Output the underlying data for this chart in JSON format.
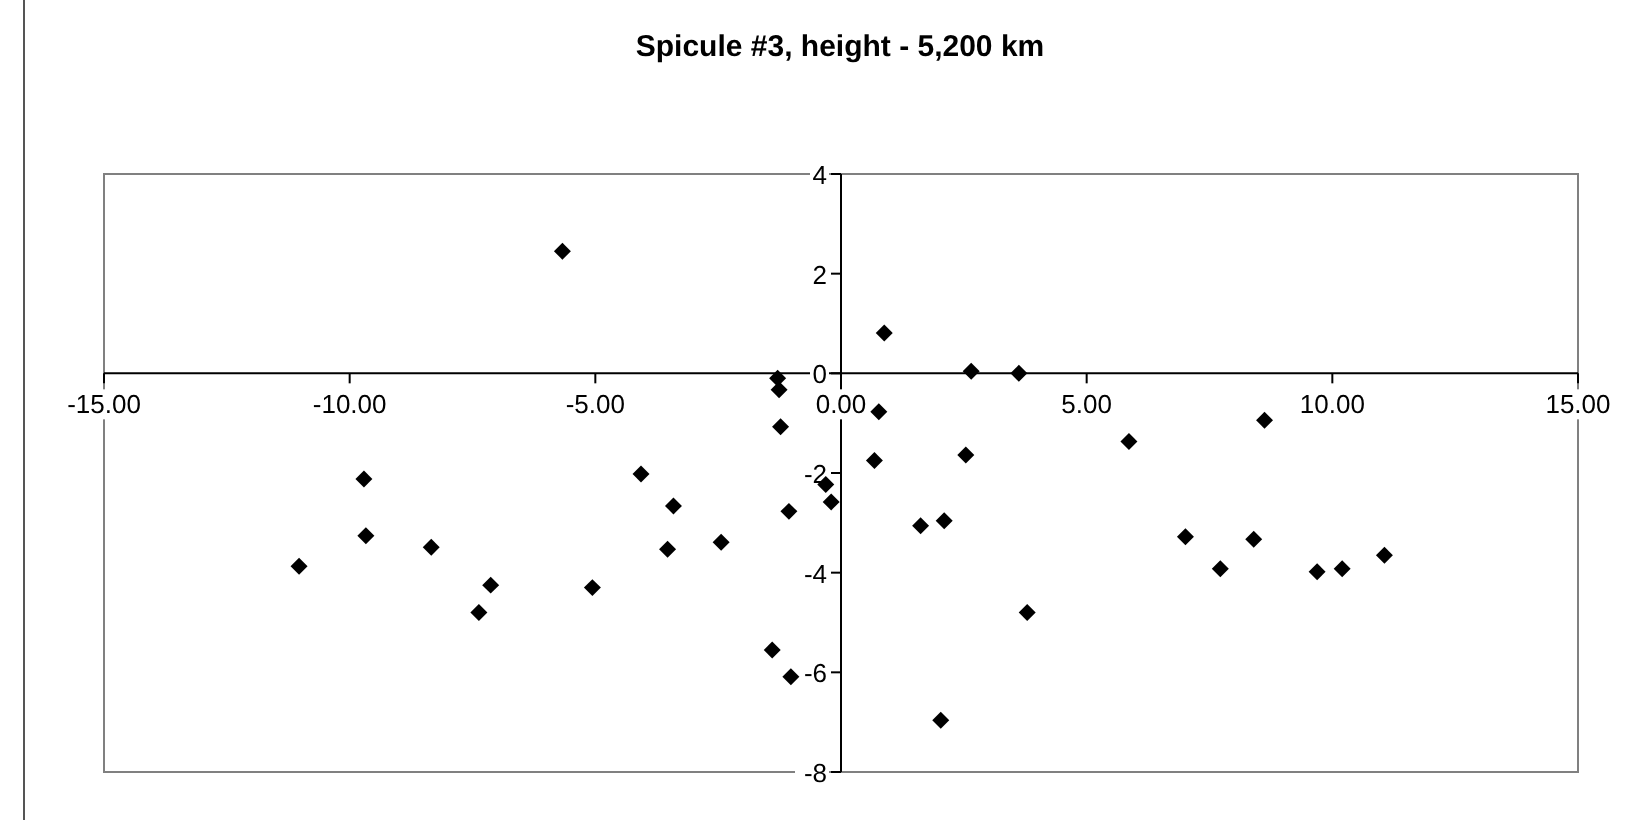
{
  "chart_data": {
    "type": "scatter",
    "title": "Spicule #3, height - 5,200 km",
    "x": [
      -5.67,
      -1.29,
      -1.26,
      -1.23,
      0.88,
      2.65,
      3.62,
      0.77,
      8.62,
      5.86,
      -9.71,
      -9.67,
      -11.03,
      -8.34,
      -7.13,
      -7.37,
      -5.06,
      -4.07,
      -3.41,
      -3.53,
      -2.44,
      -1.06,
      -1.4,
      -1.02,
      -0.31,
      -0.2,
      0.68,
      2.54,
      1.62,
      2.1,
      2.03,
      3.79,
      7.01,
      7.72,
      8.4,
      9.69,
      10.2,
      11.06
    ],
    "values": [
      2.45,
      -0.1,
      -0.33,
      -1.07,
      0.81,
      0.04,
      0.0,
      -0.77,
      -0.94,
      -1.37,
      -2.12,
      -3.26,
      -3.87,
      -3.49,
      -4.25,
      -4.8,
      -4.3,
      -2.02,
      -2.66,
      -3.53,
      -3.39,
      -2.77,
      -5.55,
      -6.09,
      -2.23,
      -2.58,
      -1.75,
      -1.64,
      -3.06,
      -2.96,
      -6.96,
      -4.8,
      -3.28,
      -3.92,
      -3.33,
      -3.98,
      -3.92,
      -3.65
    ],
    "color": "#000000",
    "marker": "diamond",
    "xlim": [
      -15,
      15
    ],
    "xticks": [
      {
        "value": -15,
        "label": "-15.00"
      },
      {
        "value": -10,
        "label": "-10.00"
      },
      {
        "value": -5,
        "label": "-5.00"
      },
      {
        "value": 0,
        "label": "0.00"
      },
      {
        "value": 5,
        "label": "5.00"
      },
      {
        "value": 10,
        "label": "10.00"
      },
      {
        "value": 15,
        "label": "15.00"
      }
    ],
    "ylim": [
      -8,
      4
    ],
    "yticks": [
      -8,
      -6,
      -4,
      -2,
      0,
      2,
      4
    ]
  }
}
